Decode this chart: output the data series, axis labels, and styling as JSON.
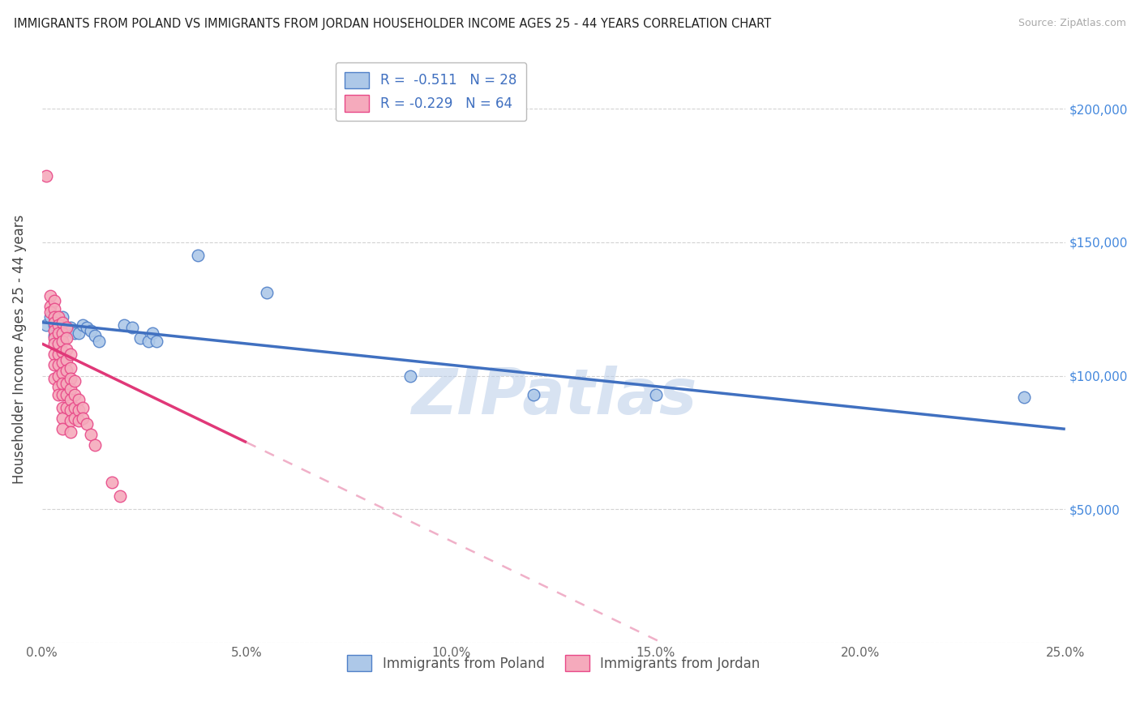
{
  "title": "IMMIGRANTS FROM POLAND VS IMMIGRANTS FROM JORDAN HOUSEHOLDER INCOME AGES 25 - 44 YEARS CORRELATION CHART",
  "source": "Source: ZipAtlas.com",
  "ylabel": "Householder Income Ages 25 - 44 years",
  "xmin": 0.0,
  "xmax": 0.25,
  "ymin": 0,
  "ymax": 220000,
  "yticks": [
    0,
    50000,
    100000,
    150000,
    200000
  ],
  "ytick_labels": [
    "",
    "$50,000",
    "$100,000",
    "$150,000",
    "$200,000"
  ],
  "xtick_vals": [
    0.0,
    0.05,
    0.1,
    0.15,
    0.2,
    0.25
  ],
  "xtick_labels": [
    "0.0%",
    "5.0%",
    "10.0%",
    "15.0%",
    "20.0%",
    "25.0%"
  ],
  "poland_color": "#adc8e8",
  "jordan_color": "#f5aabc",
  "poland_edge_color": "#5080c8",
  "jordan_edge_color": "#e84888",
  "poland_line_color": "#4070c0",
  "jordan_line_color": "#e03878",
  "jordan_dash_color": "#f0b0c8",
  "background_color": "#ffffff",
  "grid_color": "#c8c8c8",
  "title_color": "#222222",
  "axis_label_color": "#444444",
  "right_tick_color": "#4488dd",
  "legend_line1": "R =  -0.511   N = 28",
  "legend_line2": "R = -0.229   N = 64",
  "poland_label": "Immigrants from Poland",
  "jordan_label": "Immigrants from Jordan",
  "poland_scatter": [
    [
      0.001,
      119000
    ],
    [
      0.002,
      122000
    ],
    [
      0.003,
      119000
    ],
    [
      0.003,
      115000
    ],
    [
      0.004,
      119000
    ],
    [
      0.005,
      116000
    ],
    [
      0.005,
      122000
    ],
    [
      0.006,
      118000
    ],
    [
      0.007,
      118000
    ],
    [
      0.008,
      116000
    ],
    [
      0.009,
      116000
    ],
    [
      0.01,
      119000
    ],
    [
      0.011,
      118000
    ],
    [
      0.012,
      117000
    ],
    [
      0.013,
      115000
    ],
    [
      0.014,
      113000
    ],
    [
      0.02,
      119000
    ],
    [
      0.022,
      118000
    ],
    [
      0.024,
      114000
    ],
    [
      0.026,
      113000
    ],
    [
      0.027,
      116000
    ],
    [
      0.028,
      113000
    ],
    [
      0.038,
      145000
    ],
    [
      0.055,
      131000
    ],
    [
      0.09,
      100000
    ],
    [
      0.12,
      93000
    ],
    [
      0.15,
      93000
    ],
    [
      0.24,
      92000
    ]
  ],
  "jordan_scatter": [
    [
      0.001,
      175000
    ],
    [
      0.002,
      130000
    ],
    [
      0.002,
      126000
    ],
    [
      0.002,
      124000
    ],
    [
      0.003,
      128000
    ],
    [
      0.003,
      125000
    ],
    [
      0.003,
      122000
    ],
    [
      0.003,
      120000
    ],
    [
      0.003,
      117000
    ],
    [
      0.003,
      114000
    ],
    [
      0.003,
      112000
    ],
    [
      0.003,
      108000
    ],
    [
      0.003,
      104000
    ],
    [
      0.003,
      99000
    ],
    [
      0.004,
      122000
    ],
    [
      0.004,
      119000
    ],
    [
      0.004,
      116000
    ],
    [
      0.004,
      112000
    ],
    [
      0.004,
      108000
    ],
    [
      0.004,
      104000
    ],
    [
      0.004,
      100000
    ],
    [
      0.004,
      96000
    ],
    [
      0.004,
      93000
    ],
    [
      0.005,
      120000
    ],
    [
      0.005,
      116000
    ],
    [
      0.005,
      113000
    ],
    [
      0.005,
      109000
    ],
    [
      0.005,
      105000
    ],
    [
      0.005,
      101000
    ],
    [
      0.005,
      97000
    ],
    [
      0.005,
      93000
    ],
    [
      0.005,
      88000
    ],
    [
      0.005,
      84000
    ],
    [
      0.005,
      80000
    ],
    [
      0.006,
      118000
    ],
    [
      0.006,
      114000
    ],
    [
      0.006,
      110000
    ],
    [
      0.006,
      106000
    ],
    [
      0.006,
      102000
    ],
    [
      0.006,
      97000
    ],
    [
      0.006,
      93000
    ],
    [
      0.006,
      88000
    ],
    [
      0.007,
      108000
    ],
    [
      0.007,
      103000
    ],
    [
      0.007,
      99000
    ],
    [
      0.007,
      95000
    ],
    [
      0.007,
      91000
    ],
    [
      0.007,
      87000
    ],
    [
      0.007,
      83000
    ],
    [
      0.007,
      79000
    ],
    [
      0.008,
      98000
    ],
    [
      0.008,
      93000
    ],
    [
      0.008,
      88000
    ],
    [
      0.008,
      84000
    ],
    [
      0.009,
      91000
    ],
    [
      0.009,
      87000
    ],
    [
      0.009,
      83000
    ],
    [
      0.01,
      88000
    ],
    [
      0.01,
      84000
    ],
    [
      0.011,
      82000
    ],
    [
      0.012,
      78000
    ],
    [
      0.013,
      74000
    ],
    [
      0.017,
      60000
    ],
    [
      0.019,
      55000
    ]
  ],
  "watermark": "ZIPatlas",
  "watermark_color": "#b8cce8"
}
